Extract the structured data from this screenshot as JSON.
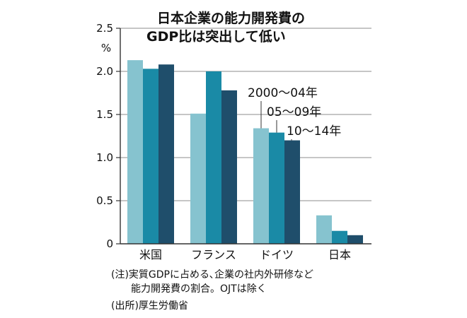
{
  "chart_data": {
    "type": "bar",
    "title": [
      "日本企業の能力開発費の",
      "GDP比は突出して低い"
    ],
    "ylabel": "%",
    "ylim": [
      0,
      2.5
    ],
    "yticks": [
      "0",
      "0.5",
      "1.0",
      "1.5",
      "2.0",
      "2.5"
    ],
    "yticks_values": [
      0,
      0.5,
      1.0,
      1.5,
      2.0,
      2.5
    ],
    "grid": true,
    "categories": [
      "米国",
      "フランス",
      "ドイツ",
      "日本"
    ],
    "series": [
      {
        "name": "2000～04年",
        "color": "#86c3cf",
        "values": [
          2.13,
          1.51,
          1.34,
          0.33
        ]
      },
      {
        "name": "05～09年",
        "color": "#1a8aa6",
        "values": [
          2.03,
          2.0,
          1.29,
          0.15
        ]
      },
      {
        "name": "10～14年",
        "color": "#1f4e6b",
        "values": [
          2.08,
          1.78,
          1.2,
          0.1
        ]
      }
    ],
    "notes": [
      "(注)実質GDPに占める､企業の社内外研修など",
      "　　能力開発費の割合。OJTは除く",
      "(出所)厚生労働省"
    ]
  }
}
